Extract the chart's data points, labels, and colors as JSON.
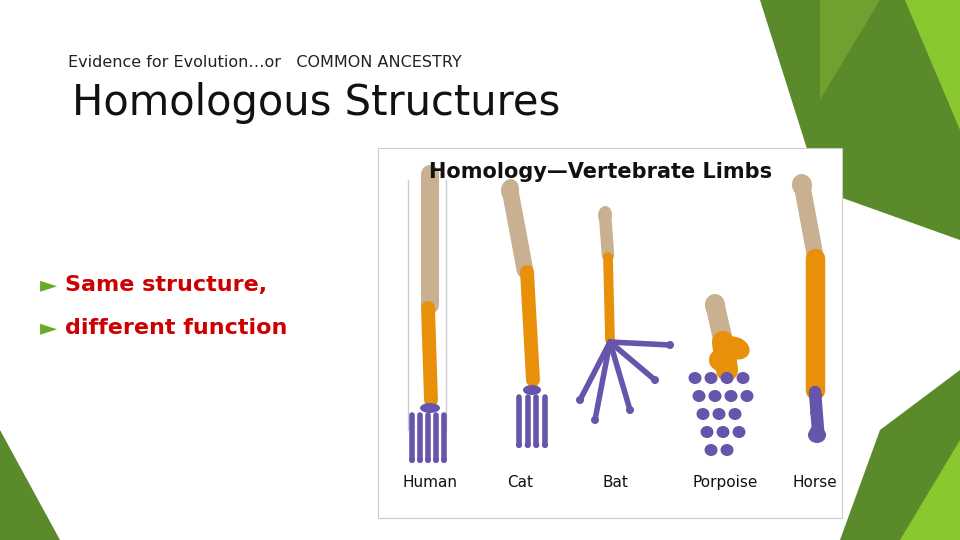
{
  "background_color": "#ffffff",
  "title_small": "Evidence for Evolution…or   COMMON ANCESTRY",
  "title_large": "Homologous Structures",
  "bullet1_arrow": "►",
  "bullet1_text": "Same structure,",
  "bullet2_arrow": "►",
  "bullet2_text": "different function",
  "bullet_color": "#cc0000",
  "bullet_arrow_color": "#6aaa2a",
  "title_small_color": "#222222",
  "title_large_color": "#111111",
  "image_title": "Homology—Vertebrate Limbs",
  "bone_tan": "#c8b090",
  "bone_orange": "#e8900a",
  "bone_purple": "#6655aa",
  "bone_outline": "#aaaaaa",
  "green_dark": "#5a8a2a",
  "green_light": "#8ac830",
  "label_color": "#111111"
}
